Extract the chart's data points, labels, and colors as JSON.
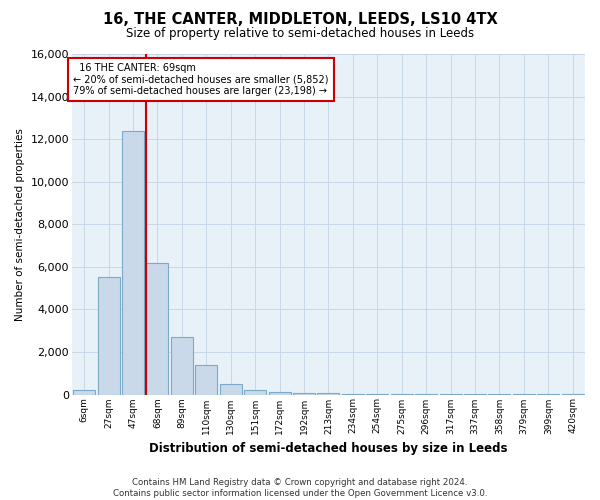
{
  "title": "16, THE CANTER, MIDDLETON, LEEDS, LS10 4TX",
  "subtitle": "Size of property relative to semi-detached houses in Leeds",
  "xlabel": "Distribution of semi-detached houses by size in Leeds",
  "ylabel": "Number of semi-detached properties",
  "footer_line1": "Contains HM Land Registry data © Crown copyright and database right 2024.",
  "footer_line2": "Contains public sector information licensed under the Open Government Licence v3.0.",
  "bar_labels": [
    "6sqm",
    "27sqm",
    "47sqm",
    "68sqm",
    "89sqm",
    "110sqm",
    "130sqm",
    "151sqm",
    "172sqm",
    "192sqm",
    "213sqm",
    "234sqm",
    "254sqm",
    "275sqm",
    "296sqm",
    "317sqm",
    "337sqm",
    "358sqm",
    "379sqm",
    "399sqm",
    "420sqm"
  ],
  "bar_values": [
    200,
    5500,
    12400,
    6200,
    2700,
    1400,
    500,
    200,
    130,
    80,
    60,
    40,
    20,
    10,
    5,
    5,
    5,
    5,
    5,
    5,
    5
  ],
  "bar_color": "#c9d9ea",
  "bar_edge_color": "#7aaac8",
  "ylim": [
    0,
    16000
  ],
  "yticks": [
    0,
    2000,
    4000,
    6000,
    8000,
    10000,
    12000,
    14000,
    16000
  ],
  "property_sqm": 69,
  "vline_x_index": 3,
  "annotation_title": "16 THE CANTER: 69sqm",
  "annotation_line1": "← 20% of semi-detached houses are smaller (5,852)",
  "annotation_line2": "79% of semi-detached houses are larger (23,198) →",
  "annotation_box_color": "#ffffff",
  "annotation_box_edge": "#cc0000",
  "vline_color": "#cc0000",
  "grid_color": "#c8d8e8",
  "background_color": "#e8f0f8"
}
